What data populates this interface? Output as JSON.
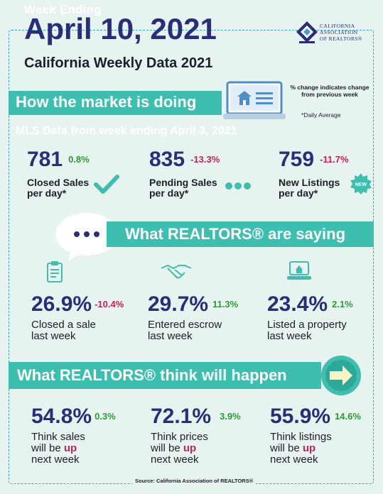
{
  "header": {
    "week_ending": "Week Ending",
    "date": "April 10, 2021",
    "subtitle": "California Weekly Data 2021"
  },
  "logo": {
    "line1": "CALIFORNIA",
    "line2": "ASSOCIATION",
    "line3": "OF REALTORS®"
  },
  "section_market": {
    "title": "How the market is doing",
    "note": "% change indicates change from previous week",
    "daily_note": "*Daily Average",
    "mls_line": "MLS Data from week ending April 3, 2021",
    "stats": [
      {
        "value": "781",
        "change": "0.8%",
        "label1": "Closed Sales",
        "label2": "per day*"
      },
      {
        "value": "835",
        "change": "-13.3%",
        "label1": "Pending Sales",
        "label2": "per day*"
      },
      {
        "value": "759",
        "change": "-11.7%",
        "label1": "New Listings",
        "label2": "per day*"
      }
    ],
    "new_badge": "NEW"
  },
  "section_saying": {
    "title": "What REALTORS® are saying",
    "stats": [
      {
        "value": "26.9%",
        "change": "-10.4%",
        "label1": "Closed a sale",
        "label2": "last week"
      },
      {
        "value": "29.7%",
        "change": "11.3%",
        "label1": "Entered escrow",
        "label2": "last week"
      },
      {
        "value": "23.4%",
        "change": "2.1%",
        "label1": "Listed a property",
        "label2": "last week"
      }
    ]
  },
  "section_think": {
    "title": "What REALTORS® think will happen",
    "stats": [
      {
        "value": "54.8%",
        "change": "0.3%",
        "label1": "Think sales",
        "label2a": "will be ",
        "label2b": "up",
        "label3": "next week"
      },
      {
        "value": "72.1%",
        "change": "3.9%",
        "label1": "Think prices",
        "label2a": "will be ",
        "label2b": "up",
        "label3": "next week"
      },
      {
        "value": "55.9%",
        "change": "14.6%",
        "label1": "Think listings",
        "label2a": "will be ",
        "label2b": "up",
        "label3": "next week"
      }
    ]
  },
  "source": "Source: California Association of REALTORS®",
  "colors": {
    "navy": "#2a2d7a",
    "teal": "#3dbfb0",
    "positive": "#2f9a3a",
    "negative": "#c5215e",
    "background": "#e7f3ef"
  },
  "icons": [
    "car-logo-icon",
    "laptop-house-icon",
    "checkmark-icon",
    "ellipsis-icon",
    "new-badge-icon",
    "speech-bubble-icon",
    "clipboard-icon",
    "handshake-icon",
    "laptop-icon",
    "arrow-right-icon"
  ]
}
